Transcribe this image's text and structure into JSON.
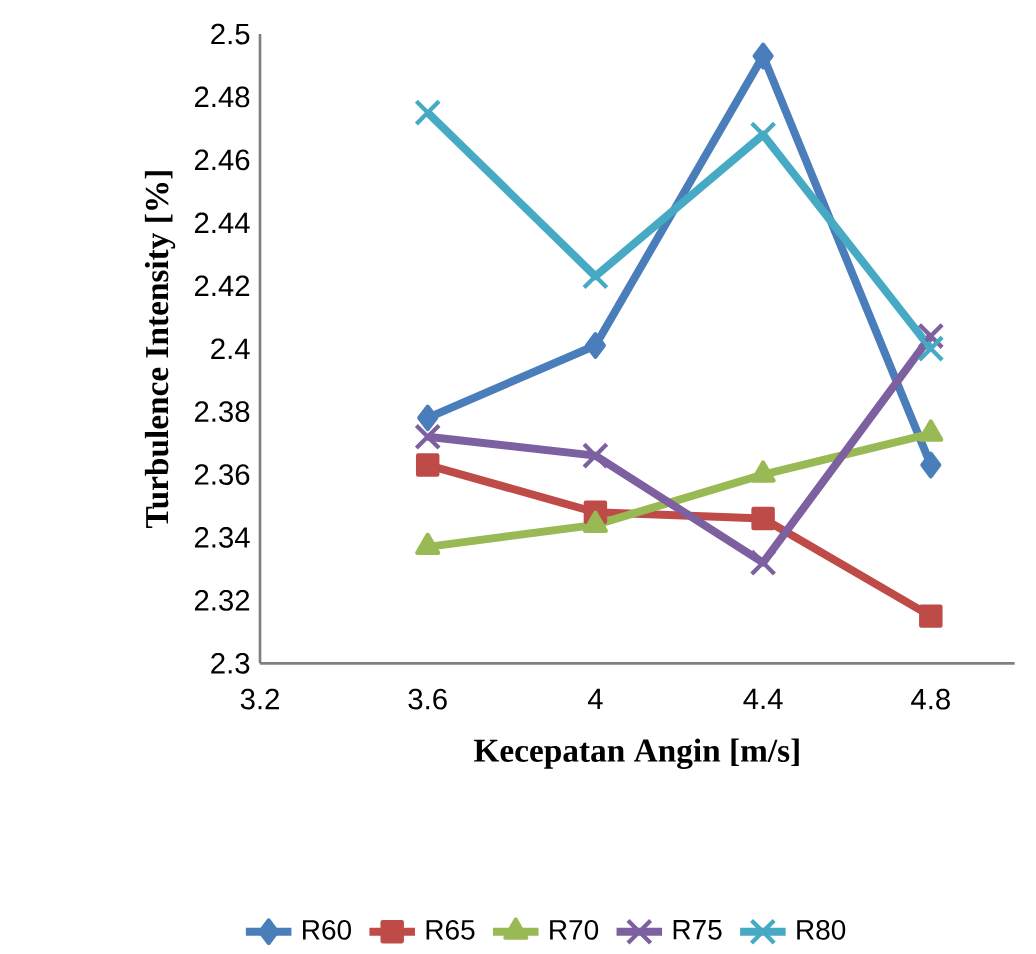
{
  "chart_data": {
    "type": "line",
    "xlabel": "Kecepatan Angin [m/s]",
    "ylabel": "Turbulence Intensity [%]",
    "x": [
      3.6,
      4,
      4.4,
      4.8
    ],
    "series": [
      {
        "name": "R60",
        "color": "#4a7ebb",
        "marker": "diamond",
        "values": [
          2.378,
          2.401,
          2.493,
          2.363
        ]
      },
      {
        "name": "R65",
        "color": "#be4b48",
        "marker": "square",
        "values": [
          2.363,
          2.348,
          2.346,
          2.315
        ]
      },
      {
        "name": "R70",
        "color": "#98b954",
        "marker": "triangle",
        "values": [
          2.337,
          2.344,
          2.36,
          2.373
        ]
      },
      {
        "name": "R75",
        "color": "#7d60a0",
        "marker": "cross",
        "values": [
          2.372,
          2.366,
          2.332,
          2.404
        ]
      },
      {
        "name": "R80",
        "color": "#46aac5",
        "marker": "cross",
        "values": [
          2.475,
          2.423,
          2.468,
          2.4
        ]
      }
    ],
    "xlim": [
      3.2,
      5.0
    ],
    "xticks": [
      3.2,
      3.6,
      4,
      4.4,
      4.8
    ],
    "ylim": [
      2.3,
      2.5
    ],
    "yticks": [
      2.3,
      2.32,
      2.34,
      2.36,
      2.38,
      2.4,
      2.42,
      2.44,
      2.46,
      2.48,
      2.5
    ],
    "grid": false,
    "legend": "bottom",
    "line_style": "solid"
  }
}
